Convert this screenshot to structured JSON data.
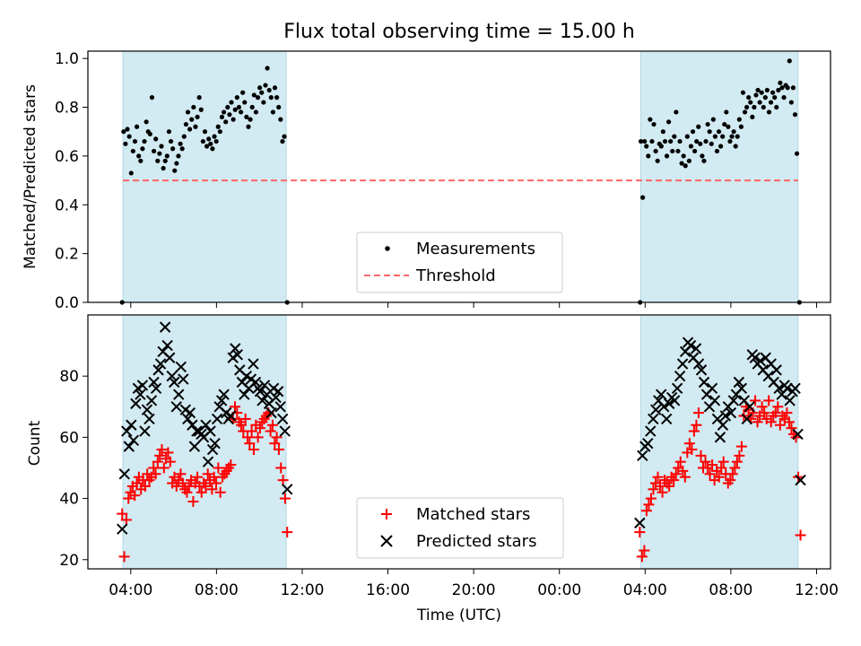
{
  "figure_title": "Flux total observing time = 15.00 h",
  "colors": {
    "span": "#add8e6",
    "measurement": "#000000",
    "threshold": "#ff6666",
    "matched": "#ff0000",
    "predicted": "#000000"
  },
  "chart_data": [
    {
      "type": "scatter",
      "ylabel": "Matched/Predicted stars",
      "ylim": [
        0.0,
        1.03
      ],
      "yticks": [
        "0.0",
        "0.2",
        "0.4",
        "0.6",
        "0.8",
        "1.0"
      ],
      "ytick_values": [
        0.0,
        0.2,
        0.4,
        0.6,
        0.8,
        1.0
      ],
      "observing_spans": [
        [
          "03:38",
          "11:15"
        ],
        [
          "03:48",
          "11:08"
        ]
      ],
      "legend": {
        "position": "lower center",
        "entries": [
          "Measurements",
          "Threshold"
        ]
      },
      "series": [
        {
          "name": "Measurements",
          "marker": "dot",
          "night1": {
            "start": "03:40",
            "end": "11:10",
            "values": [
              0.7,
              0.65,
              0.71,
              0.68,
              0.53,
              0.62,
              0.66,
              0.72,
              0.6,
              0.58,
              0.63,
              0.66,
              0.74,
              0.7,
              0.69,
              0.84,
              0.62,
              0.67,
              0.58,
              0.61,
              0.64,
              0.55,
              0.58,
              0.6,
              0.7,
              0.66,
              0.63,
              0.54,
              0.57,
              0.6,
              0.65,
              0.63,
              0.68,
              0.73,
              0.78,
              0.71,
              0.75,
              0.8,
              0.72,
              0.76,
              0.84,
              0.79,
              0.66,
              0.7,
              0.64,
              0.67,
              0.65,
              0.63,
              0.68,
              0.66,
              0.72,
              0.7,
              0.76,
              0.78,
              0.74,
              0.8,
              0.77,
              0.82,
              0.75,
              0.79,
              0.84,
              0.8,
              0.78,
              0.86,
              0.82,
              0.76,
              0.72,
              0.75,
              0.8,
              0.85,
              0.78,
              0.84,
              0.88,
              0.86,
              0.82,
              0.89,
              0.96,
              0.87,
              0.84,
              0.78,
              0.88,
              0.84,
              0.8,
              0.75,
              0.66,
              0.68
            ]
          },
          "night2": {
            "start": "03:48",
            "end": "11:05",
            "values": [
              0.66,
              0.43,
              0.66,
              0.64,
              0.6,
              0.75,
              0.66,
              0.73,
              0.62,
              0.58,
              0.65,
              0.64,
              0.7,
              0.66,
              0.6,
              0.74,
              0.66,
              0.62,
              0.68,
              0.78,
              0.62,
              0.66,
              0.57,
              0.6,
              0.56,
              0.68,
              0.58,
              0.64,
              0.7,
              0.62,
              0.66,
              0.72,
              0.65,
              0.6,
              0.58,
              0.66,
              0.73,
              0.7,
              0.65,
              0.75,
              0.68,
              0.62,
              0.7,
              0.64,
              0.68,
              0.73,
              0.78,
              0.72,
              0.66,
              0.68,
              0.7,
              0.64,
              0.68,
              0.75,
              0.72,
              0.86,
              0.78,
              0.8,
              0.84,
              0.82,
              0.76,
              0.8,
              0.85,
              0.87,
              0.82,
              0.86,
              0.8,
              0.84,
              0.87,
              0.78,
              0.82,
              0.86,
              0.84,
              0.8,
              0.87,
              0.9,
              0.88,
              0.84,
              0.89,
              0.88,
              0.99,
              0.82,
              0.88,
              0.77,
              0.61
            ]
          },
          "edge_points": [
            [
              "03:36",
              0.0
            ],
            [
              "11:18",
              0.0
            ],
            [
              "03:46",
              0.0
            ],
            [
              "11:12",
              0.0
            ]
          ]
        },
        {
          "name": "Threshold",
          "type": "hline",
          "value": 0.5,
          "style": "dashed"
        }
      ]
    },
    {
      "type": "scatter",
      "ylabel": "Count",
      "xlabel": "Time (UTC)",
      "ylim": [
        17,
        100
      ],
      "yticks": [
        "20",
        "40",
        "60",
        "80"
      ],
      "ytick_values": [
        20,
        40,
        60,
        80
      ],
      "xticks": [
        "04:00",
        "08:00",
        "12:00",
        "16:00",
        "20:00",
        "00:00",
        "04:00",
        "08:00",
        "12:00"
      ],
      "xtick_times": [
        "04:00",
        "08:00",
        "12:00",
        "16:00",
        "20:00",
        "00:00",
        "04:00",
        "08:00",
        "12:00"
      ],
      "observing_spans": [
        [
          "03:38",
          "11:15"
        ],
        [
          "03:48",
          "11:08"
        ]
      ],
      "legend": {
        "position": "lower center",
        "entries": [
          "Matched stars",
          "Predicted stars"
        ]
      },
      "series": [
        {
          "name": "Matched stars",
          "marker": "plus",
          "night1": {
            "start": "03:36",
            "end": "11:18",
            "values": [
              35,
              21,
              33,
              40,
              42,
              44,
              41,
              45,
              47,
              43,
              46,
              44,
              48,
              46,
              47,
              50,
              48,
              52,
              54,
              56,
              50,
              53,
              55,
              52,
              45,
              47,
              44,
              46,
              48,
              45,
              43,
              42,
              44,
              46,
              39,
              45,
              47,
              44,
              42,
              45,
              44,
              48,
              46,
              43,
              47,
              45,
              50,
              42,
              47,
              48,
              49,
              50,
              51,
              66,
              70,
              68,
              65,
              64,
              62,
              66,
              60,
              58,
              62,
              56,
              64,
              60,
              63,
              65,
              66,
              67,
              68,
              62,
              64,
              58,
              60,
              56,
              50,
              46,
              40,
              29
            ]
          },
          "night2": {
            "start": "03:45",
            "end": "11:15",
            "values": [
              29,
              21,
              23,
              36,
              38,
              40,
              43,
              45,
              47,
              44,
              42,
              46,
              45,
              44,
              47,
              46,
              48,
              50,
              52,
              49,
              47,
              55,
              58,
              56,
              62,
              64,
              68,
              54,
              50,
              52,
              50,
              48,
              51,
              46,
              49,
              47,
              50,
              52,
              48,
              45,
              46,
              48,
              50,
              52,
              54,
              57,
              67,
              70,
              69,
              66,
              68,
              72,
              65,
              67,
              70,
              68,
              66,
              72,
              65,
              67,
              68,
              70,
              64,
              67,
              66,
              68,
              65,
              63,
              61,
              60,
              47,
              28
            ]
          }
        },
        {
          "name": "Predicted stars",
          "marker": "x",
          "night1": {
            "start": "03:36",
            "end": "11:18",
            "values": [
              30,
              48,
              62,
              57,
              64,
              59,
              71,
              76,
              74,
              77,
              62,
              69,
              66,
              72,
              78,
              76,
              82,
              84,
              88,
              96,
              90,
              86,
              80,
              78,
              70,
              74,
              83,
              79,
              69,
              66,
              68,
              64,
              57,
              62,
              62,
              61,
              60,
              64,
              52,
              62,
              56,
              58,
              66,
              70,
              72,
              74,
              68,
              66,
              67,
              86,
              89,
              87,
              82,
              78,
              74,
              80,
              76,
              79,
              84,
              78,
              76,
              75,
              72,
              77,
              74,
              71,
              68,
              76,
              73,
              75,
              70,
              66,
              62,
              43
            ]
          },
          "night2": {
            "start": "03:45",
            "end": "11:15",
            "values": [
              32,
              54,
              57,
              58,
              62,
              66,
              69,
              72,
              74,
              70,
              66,
              71,
              73,
              72,
              76,
              80,
              84,
              88,
              91,
              90,
              86,
              89,
              84,
              82,
              78,
              74,
              70,
              76,
              72,
              66,
              60,
              64,
              67,
              70,
              68,
              72,
              74,
              78,
              76,
              72,
              66,
              70,
              87,
              86,
              84,
              85,
              82,
              86,
              80,
              84,
              78,
              82,
              76,
              74,
              77,
              76,
              72,
              75,
              76,
              61,
              46
            ]
          }
        }
      ]
    }
  ]
}
